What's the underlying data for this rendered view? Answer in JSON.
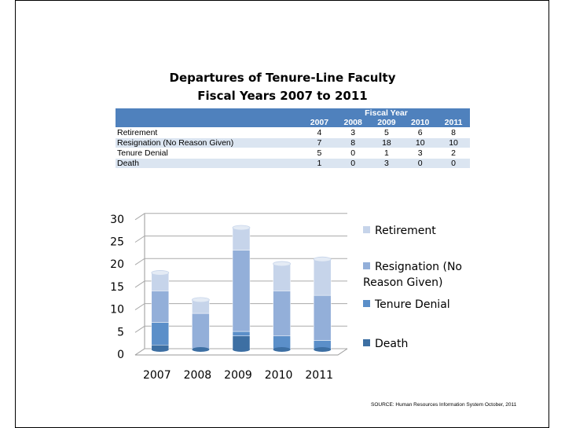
{
  "title": [
    "Departures of Tenure-Line Faculty",
    "Fiscal Years 2007 to 2011"
  ],
  "table": {
    "group_header": "Fiscal Year",
    "columns": [
      "2007",
      "2008",
      "2009",
      "2010",
      "2011"
    ],
    "rows": [
      [
        "Retirement",
        4,
        3,
        5,
        6,
        8
      ],
      [
        "Resignation (No Reason Given)",
        7,
        8,
        18,
        10,
        10
      ],
      [
        "Tenure Denial",
        5,
        0,
        1,
        3,
        2
      ],
      [
        "Death",
        1,
        0,
        3,
        0,
        0
      ]
    ]
  },
  "chart_data": {
    "type": "bar",
    "stacked": true,
    "categories": [
      "2007",
      "2008",
      "2009",
      "2010",
      "2011"
    ],
    "series": [
      {
        "name": "Death",
        "color": "#3d6fa3",
        "values": [
          1,
          0,
          3,
          0,
          0
        ]
      },
      {
        "name": "Tenure Denial",
        "color": "#5b8fc9",
        "values": [
          5,
          0,
          1,
          3,
          2
        ]
      },
      {
        "name": "Resignation (No Reason Given)",
        "color": "#93afd9",
        "values": [
          7,
          8,
          18,
          10,
          10
        ]
      },
      {
        "name": "Retirement",
        "color": "#c6d4ea",
        "values": [
          4,
          3,
          5,
          6,
          8
        ]
      }
    ],
    "ylim": [
      0,
      30
    ],
    "yticks": [
      0,
      5,
      10,
      15,
      20,
      25,
      30
    ],
    "grid": true,
    "legend": "right"
  },
  "source": "SOURCE: Human Resources Information System October, 2011"
}
